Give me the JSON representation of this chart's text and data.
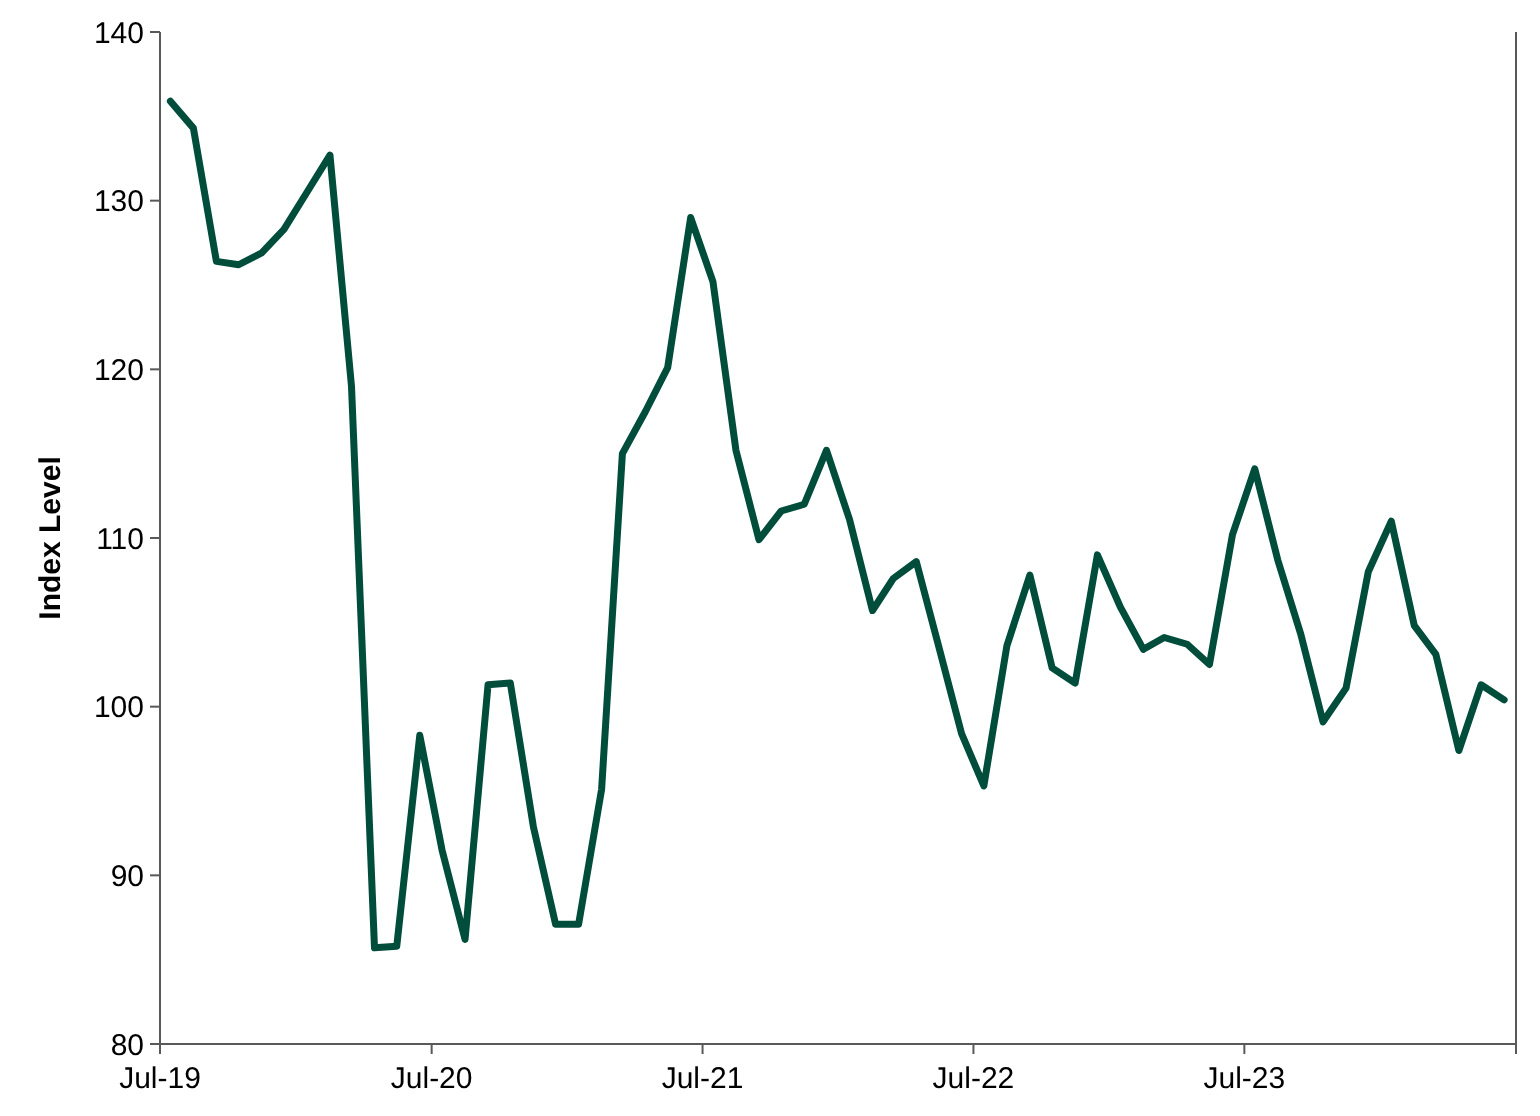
{
  "chart_data": {
    "type": "line",
    "ylabel": "Index Level",
    "x": [
      "2019-07-15",
      "2019-08-15",
      "2019-09-15",
      "2019-10-15",
      "2019-11-15",
      "2019-12-15",
      "2020-01-15",
      "2020-02-15",
      "2020-03-15",
      "2020-04-15",
      "2020-05-15",
      "2020-06-15",
      "2020-07-15",
      "2020-08-15",
      "2020-09-15",
      "2020-10-15",
      "2020-11-15",
      "2020-12-15",
      "2021-01-15",
      "2021-02-15",
      "2021-03-15",
      "2021-04-15",
      "2021-05-15",
      "2021-06-15",
      "2021-07-15",
      "2021-08-15",
      "2021-09-15",
      "2021-10-15",
      "2021-11-15",
      "2021-12-15",
      "2022-01-15",
      "2022-02-15",
      "2022-03-15",
      "2022-04-15",
      "2022-05-15",
      "2022-06-15",
      "2022-07-15",
      "2022-08-15",
      "2022-09-15",
      "2022-10-15",
      "2022-11-15",
      "2022-12-15",
      "2023-01-15",
      "2023-02-15",
      "2023-03-15",
      "2023-04-15",
      "2023-05-15",
      "2023-06-15",
      "2023-07-15",
      "2023-08-15",
      "2023-09-15",
      "2023-10-15",
      "2023-11-15",
      "2023-12-15",
      "2024-01-15",
      "2024-02-15",
      "2024-03-15",
      "2024-04-15",
      "2024-05-15",
      "2024-06-15"
    ],
    "series": [
      {
        "color": "#004d3c",
        "values": [
          135.9,
          134.3,
          126.4,
          126.2,
          126.9,
          128.3,
          130.5,
          132.7,
          119.0,
          85.7,
          85.8,
          98.3,
          91.5,
          86.2,
          101.3,
          101.4,
          92.9,
          87.1,
          87.1,
          95.1,
          115.0,
          117.5,
          120.1,
          129.0,
          125.2,
          115.2,
          109.9,
          111.6,
          112.0,
          115.2,
          111.1,
          105.7,
          107.6,
          108.6,
          103.6,
          98.4,
          95.3,
          103.6,
          107.8,
          102.3,
          101.4,
          109.0,
          105.9,
          103.4,
          104.1,
          103.7,
          102.5,
          110.2,
          114.1,
          108.7,
          104.3,
          99.1,
          101.1,
          108.0,
          111.0,
          104.8,
          103.1,
          97.4,
          101.3,
          100.4
        ]
      }
    ],
    "xlim": [
      "2019-07-01",
      "2024-07-01"
    ],
    "xticks": [
      {
        "value": "2019-07-01",
        "label": "Jul-19"
      },
      {
        "value": "2020-07-01",
        "label": "Jul-20"
      },
      {
        "value": "2021-07-01",
        "label": "Jul-21"
      },
      {
        "value": "2022-07-01",
        "label": "Jul-22"
      },
      {
        "value": "2023-07-01",
        "label": "Jul-23"
      },
      {
        "value": "2024-07-01",
        "label": null
      }
    ],
    "ylim": [
      80,
      140
    ],
    "yticks": [
      80,
      90,
      100,
      110,
      120,
      130,
      140
    ],
    "marker": "none",
    "line_style": "solid"
  }
}
